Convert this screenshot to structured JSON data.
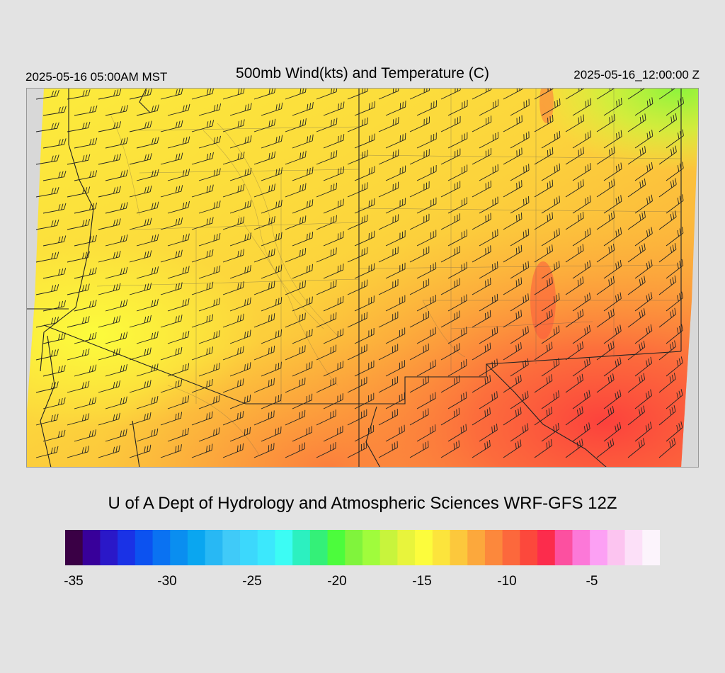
{
  "header": {
    "local_time": "2025-05-16 05:00AM MST",
    "title": "500mb Wind(kts) and Temperature (C)",
    "valid_time": "2025-05-16_12:00:00 Z"
  },
  "credit": "U of A Dept of Hydrology and Atmospheric Sciences WRF-GFS 12Z",
  "map": {
    "field": "500mb temperature (C) with wind barbs (kts)",
    "temperature_range_c": [
      -21,
      -7
    ],
    "warmest_region": "southeast",
    "coolest_region": "northeast corner"
  },
  "colorbar": {
    "colors": [
      "#3a0045",
      "#38009a",
      "#2a18c8",
      "#1a32e6",
      "#0c52f0",
      "#0a72f2",
      "#0a8ef0",
      "#0aa6f0",
      "#28b8f4",
      "#40caf8",
      "#3cd8fc",
      "#3ce8fc",
      "#3cfcf4",
      "#2cf0c0",
      "#34f078",
      "#4cfc3c",
      "#80f43c",
      "#a0fc3c",
      "#c8f43c",
      "#e8f43c",
      "#fcfc3c",
      "#fce43c",
      "#fcc83c",
      "#fca83c",
      "#fc883c",
      "#fc683c",
      "#fc483c",
      "#fc2c4c",
      "#fc50a0",
      "#fc78d8",
      "#fca0f4",
      "#fcc4f0",
      "#fce0f8",
      "#fcf4fc"
    ],
    "tick_labels": [
      "-35",
      "-30",
      "-25",
      "-20",
      "-15",
      "-10",
      "-5"
    ],
    "tick_values": [
      -35,
      -30,
      -25,
      -20,
      -15,
      -10,
      -5
    ],
    "value_min": -36,
    "value_max": -1
  }
}
